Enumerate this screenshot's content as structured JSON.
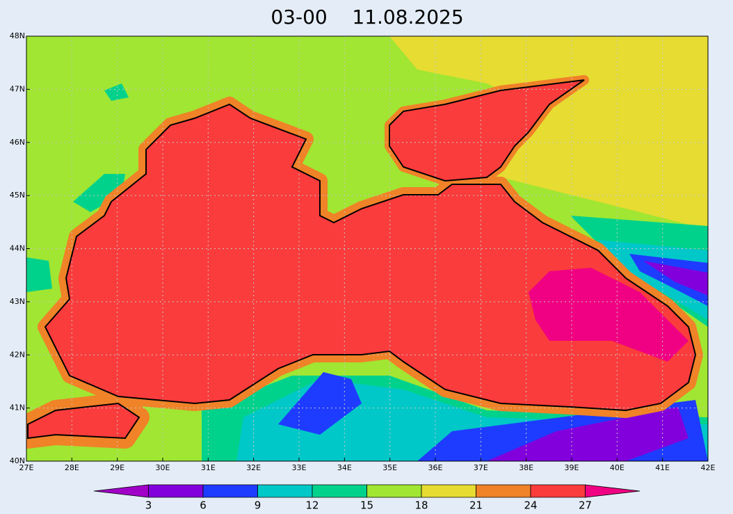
{
  "title": "03-00    11.08.2025",
  "x_axis": {
    "labels": [
      "27E",
      "28E",
      "29E",
      "30E",
      "31E",
      "32E",
      "33E",
      "34E",
      "35E",
      "36E",
      "37E",
      "38E",
      "39E",
      "40E",
      "41E",
      "42E"
    ]
  },
  "y_axis": {
    "labels": [
      "48N",
      "47N",
      "46N",
      "45N",
      "44N",
      "43N",
      "42N",
      "41N",
      "40N"
    ]
  },
  "colorbar": {
    "ticks": [
      3,
      6,
      9,
      12,
      15,
      18,
      21,
      24,
      27
    ],
    "colors": [
      "#a000c8",
      "#8200dc",
      "#1e3cff",
      "#00c8c8",
      "#00d28c",
      "#a0e632",
      "#e6dc32",
      "#f08228",
      "#fa3c3c",
      "#f00082"
    ]
  }
}
